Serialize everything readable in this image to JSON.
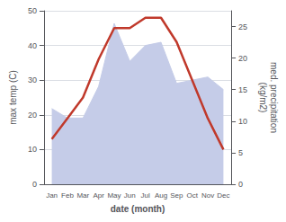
{
  "chart_data": {
    "type": "line",
    "xlabel": "date (month)",
    "ylabel": "max temp (C)",
    "y2label": "med. precipitation\n(kg/m2)",
    "categories": [
      "Jan",
      "Feb",
      "Mar",
      "Apr",
      "May",
      "Jun",
      "Jul",
      "Aug",
      "Sep",
      "Oct",
      "Nov",
      "Dec"
    ],
    "series": [
      {
        "type": "area",
        "axis": "y2",
        "color": "#c5cce8",
        "values": [
          12,
          10.5,
          10.5,
          15.5,
          25.5,
          19.5,
          22,
          22.5,
          16,
          16.5,
          17,
          15
        ]
      },
      {
        "type": "line",
        "color": "#c0392b",
        "values": [
          13,
          19,
          25,
          36,
          45,
          45,
          48,
          48,
          41,
          30,
          19,
          10
        ]
      }
    ],
    "ylim": [
      0,
      50
    ],
    "yticks": [
      0,
      10,
      20,
      30,
      40,
      50
    ],
    "y2lim": [
      0,
      27.5
    ],
    "y2ticks": [
      0,
      5,
      10,
      15,
      20,
      25
    ],
    "grid": true
  }
}
